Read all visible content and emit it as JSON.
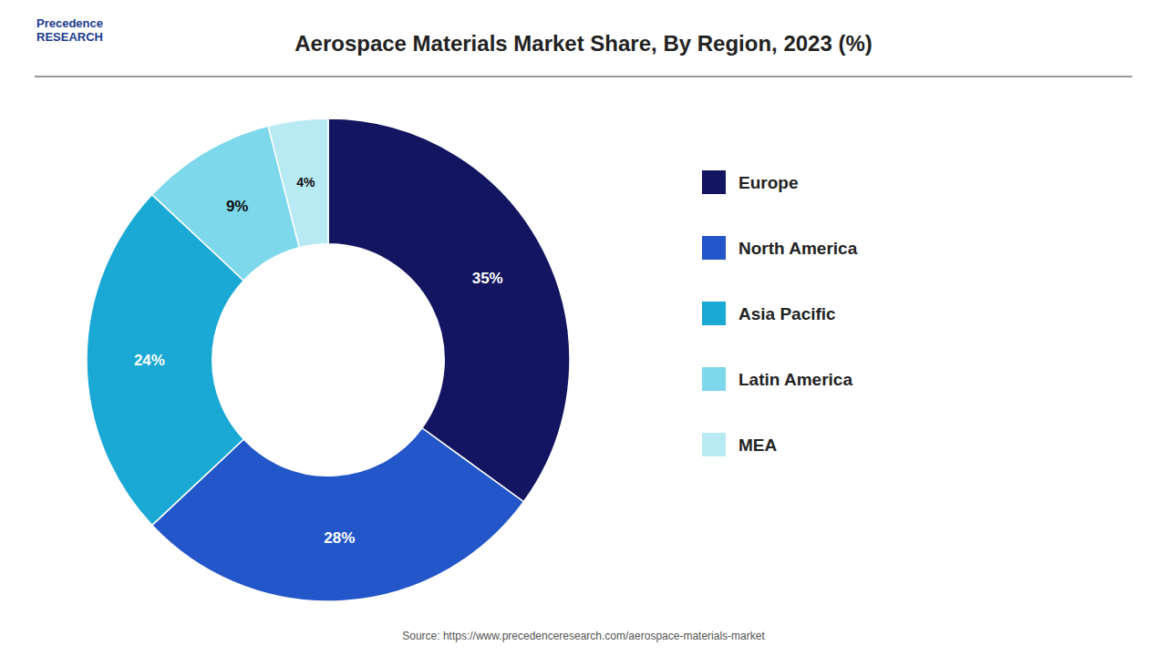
{
  "chart_data": {
    "type": "donut",
    "title": "Aerospace Materials Market Share, By Region, 2023 (%)",
    "categories": [
      "Europe",
      "North America",
      "Asia Pacific",
      "Latin America",
      "MEA"
    ],
    "values": [
      35,
      28,
      24,
      9,
      4
    ],
    "value_labels": [
      "35%",
      "28%",
      "24%",
      "9%",
      "4%"
    ],
    "colors": [
      "#131560",
      "#2356c8",
      "#1aa8d4",
      "#7dd8ec",
      "#b8eaf4"
    ],
    "data_labels": true,
    "legend": "right",
    "annotations": [
      "Precedence\nRESEARCH",
      "Source: https://www.precedenceresearch.com/aerospace-materials-market"
    ]
  }
}
